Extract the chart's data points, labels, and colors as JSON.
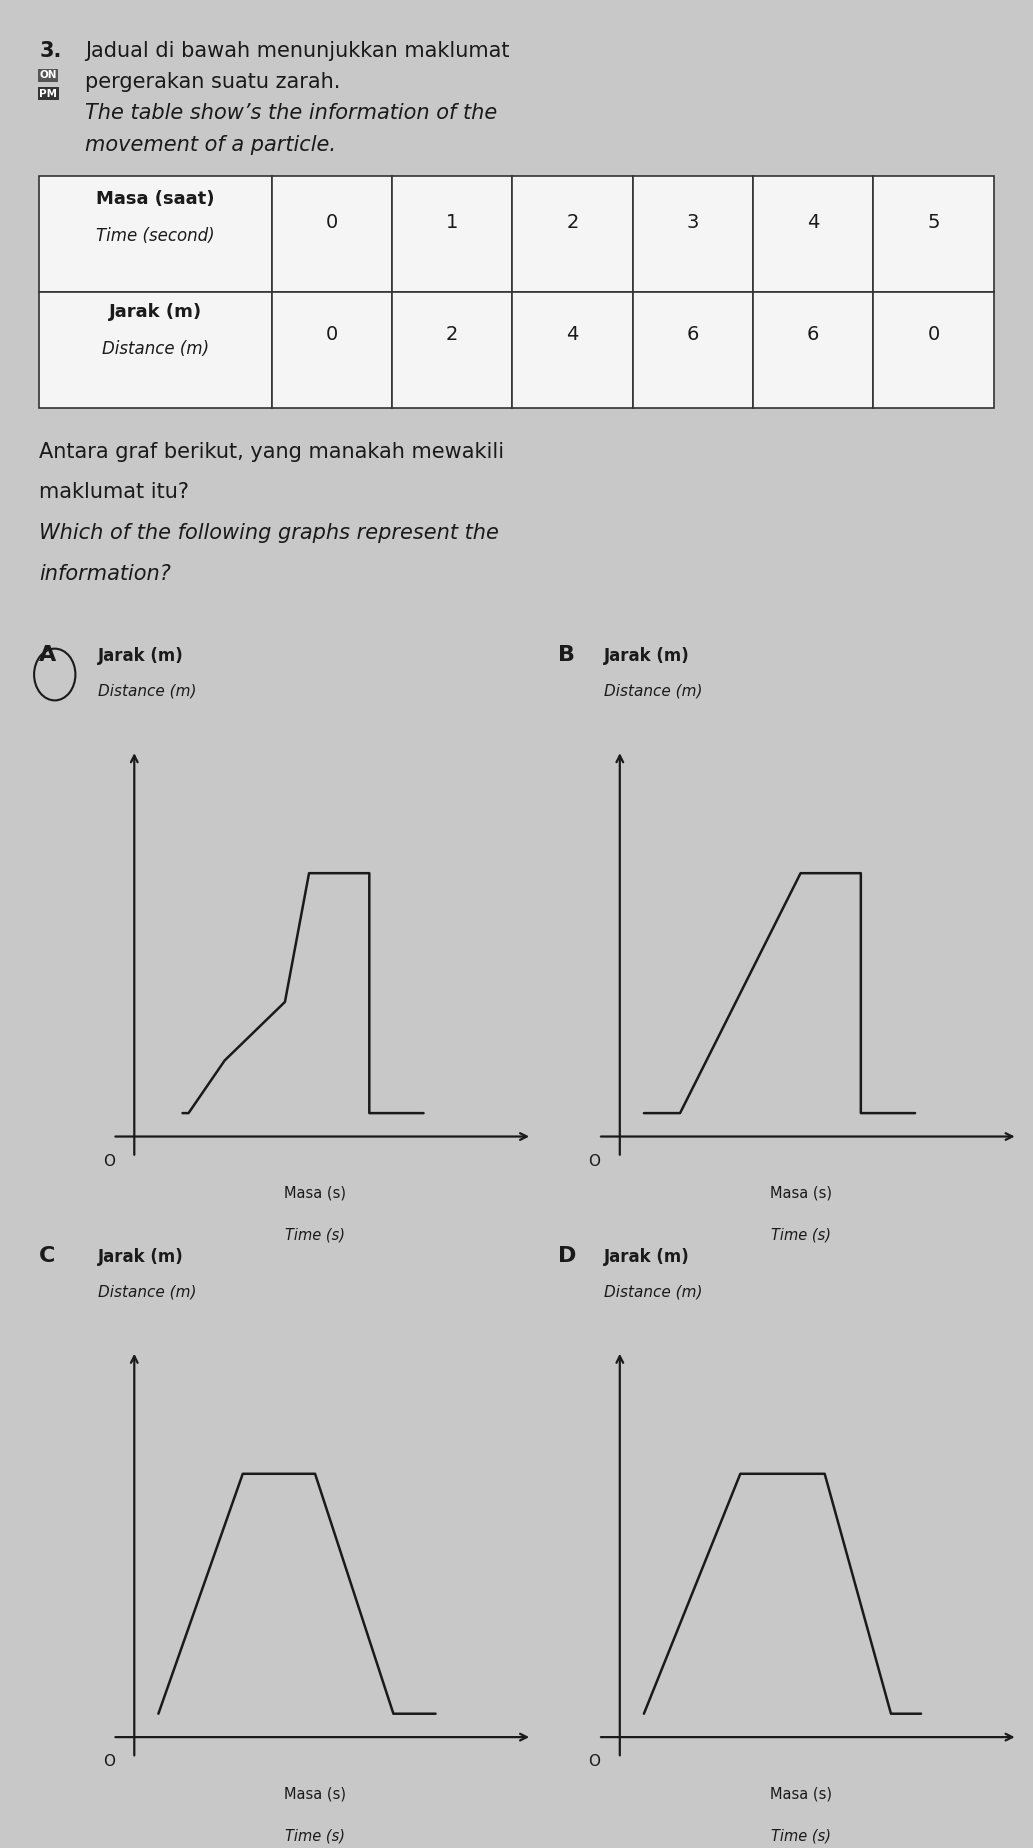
{
  "bg_color": "#c8c8c8",
  "text_color": "#1a1a1a",
  "graph_line_color": "#1a1a1a",
  "q_number": "3.",
  "q_line1": "Jadual di bawah menunjukkan maklumat",
  "q_line2": "pergerakan suatu zarah.",
  "q_line3": "The table show’s the information of the",
  "q_line4": "movement of a particle.",
  "row1_header1": "Masa (saat)",
  "row1_header2": "Time (second)",
  "row2_header1": "Jarak (m)",
  "row2_header2": "Distance (m)",
  "row1_vals": [
    "0",
    "1",
    "2",
    "3",
    "4",
    "5"
  ],
  "row2_vals": [
    "0",
    "2",
    "4",
    "6",
    "6",
    "0"
  ],
  "q2_line1": "Antara graf berikut, yang manakah mewakili",
  "q2_line2": "maklumat itu?",
  "q2_line3": "Which of the following graphs represent the",
  "q2_line4": "information?",
  "ylabel1": "Jarak (m)",
  "ylabel2": "Distance (m)",
  "xlabel1": "Masa (s)",
  "xlabel2": "Time (s)",
  "label_A": "A",
  "label_B": "B",
  "label_C": "C",
  "label_D": "D"
}
